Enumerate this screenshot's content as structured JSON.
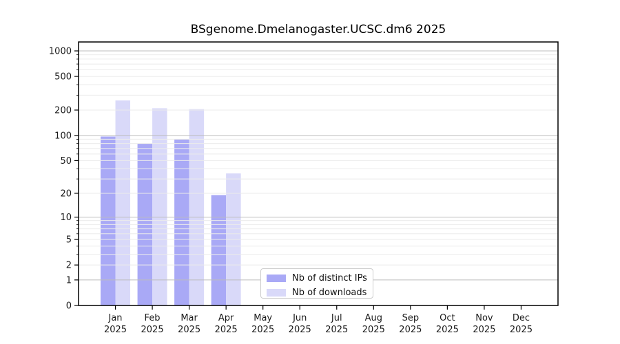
{
  "chart_data": {
    "type": "bar",
    "title": "BSgenome.Dmelanogaster.UCSC.dm6 2025",
    "categories": [
      "Jan",
      "Feb",
      "Mar",
      "Apr",
      "May",
      "Jun",
      "Jul",
      "Aug",
      "Sep",
      "Oct",
      "Nov",
      "Dec"
    ],
    "year_label": "2025",
    "series": [
      {
        "name": "Nb of distinct IPs",
        "color": "#a9a9f6",
        "values": [
          97,
          80,
          90,
          19,
          0,
          0,
          0,
          0,
          0,
          0,
          0,
          0
        ]
      },
      {
        "name": "Nb of downloads",
        "color": "#d9d9f9",
        "values": [
          260,
          210,
          205,
          35,
          0,
          0,
          0,
          0,
          0,
          0,
          0,
          0
        ]
      }
    ],
    "yscale": "log1p",
    "yticks": [
      0,
      1,
      2,
      5,
      10,
      20,
      50,
      100,
      200,
      500,
      1000
    ],
    "ylim": [
      0,
      1275
    ],
    "xlabel": "",
    "ylabel": "",
    "grid": "horizontal major+minor",
    "legend_position": "inside-bottom-center",
    "colors": {
      "axis": "#000000",
      "major_grid": "#bdbdbd",
      "minor_grid": "#ebebeb",
      "tick_text": "#1a1a1a"
    }
  }
}
